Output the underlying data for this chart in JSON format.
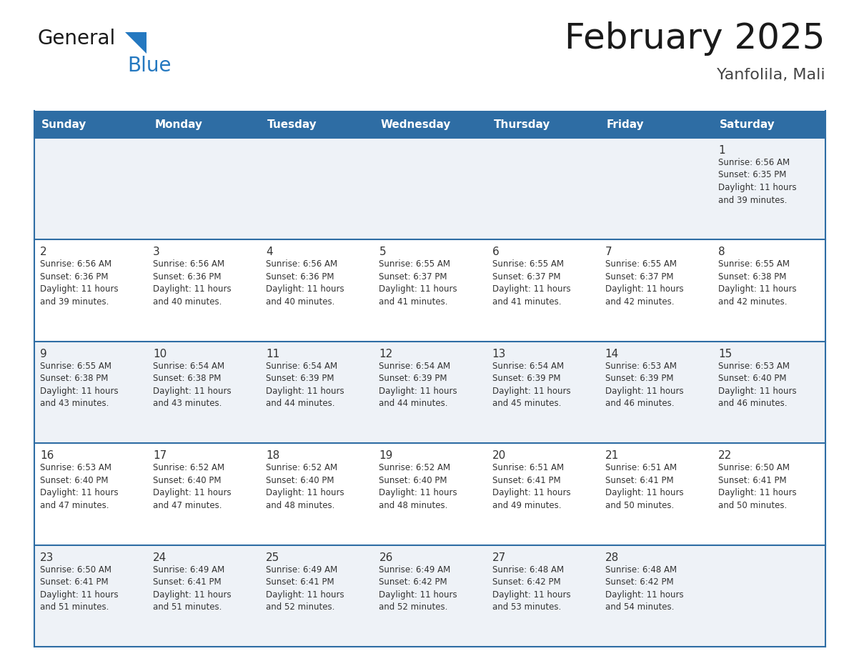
{
  "title": "February 2025",
  "subtitle": "Yanfolila, Mali",
  "days_of_week": [
    "Sunday",
    "Monday",
    "Tuesday",
    "Wednesday",
    "Thursday",
    "Friday",
    "Saturday"
  ],
  "header_bg": "#2E6DA4",
  "header_text": "#FFFFFF",
  "cell_bg_odd": "#EEF2F7",
  "cell_bg_even": "#FFFFFF",
  "border_color": "#2E6DA4",
  "day_number_color": "#333333",
  "text_color": "#333333",
  "title_color": "#1a1a1a",
  "subtitle_color": "#444444",
  "logo_general_color": "#1a1a1a",
  "logo_blue_color": "#2478C0",
  "weeks": [
    [
      null,
      null,
      null,
      null,
      null,
      null,
      {
        "day": 1,
        "sunrise": "6:56 AM",
        "sunset": "6:35 PM",
        "daylight": "11 hours and 39 minutes."
      }
    ],
    [
      {
        "day": 2,
        "sunrise": "6:56 AM",
        "sunset": "6:36 PM",
        "daylight": "11 hours and 39 minutes."
      },
      {
        "day": 3,
        "sunrise": "6:56 AM",
        "sunset": "6:36 PM",
        "daylight": "11 hours and 40 minutes."
      },
      {
        "day": 4,
        "sunrise": "6:56 AM",
        "sunset": "6:36 PM",
        "daylight": "11 hours and 40 minutes."
      },
      {
        "day": 5,
        "sunrise": "6:55 AM",
        "sunset": "6:37 PM",
        "daylight": "11 hours and 41 minutes."
      },
      {
        "day": 6,
        "sunrise": "6:55 AM",
        "sunset": "6:37 PM",
        "daylight": "11 hours and 41 minutes."
      },
      {
        "day": 7,
        "sunrise": "6:55 AM",
        "sunset": "6:37 PM",
        "daylight": "11 hours and 42 minutes."
      },
      {
        "day": 8,
        "sunrise": "6:55 AM",
        "sunset": "6:38 PM",
        "daylight": "11 hours and 42 minutes."
      }
    ],
    [
      {
        "day": 9,
        "sunrise": "6:55 AM",
        "sunset": "6:38 PM",
        "daylight": "11 hours and 43 minutes."
      },
      {
        "day": 10,
        "sunrise": "6:54 AM",
        "sunset": "6:38 PM",
        "daylight": "11 hours and 43 minutes."
      },
      {
        "day": 11,
        "sunrise": "6:54 AM",
        "sunset": "6:39 PM",
        "daylight": "11 hours and 44 minutes."
      },
      {
        "day": 12,
        "sunrise": "6:54 AM",
        "sunset": "6:39 PM",
        "daylight": "11 hours and 44 minutes."
      },
      {
        "day": 13,
        "sunrise": "6:54 AM",
        "sunset": "6:39 PM",
        "daylight": "11 hours and 45 minutes."
      },
      {
        "day": 14,
        "sunrise": "6:53 AM",
        "sunset": "6:39 PM",
        "daylight": "11 hours and 46 minutes."
      },
      {
        "day": 15,
        "sunrise": "6:53 AM",
        "sunset": "6:40 PM",
        "daylight": "11 hours and 46 minutes."
      }
    ],
    [
      {
        "day": 16,
        "sunrise": "6:53 AM",
        "sunset": "6:40 PM",
        "daylight": "11 hours and 47 minutes."
      },
      {
        "day": 17,
        "sunrise": "6:52 AM",
        "sunset": "6:40 PM",
        "daylight": "11 hours and 47 minutes."
      },
      {
        "day": 18,
        "sunrise": "6:52 AM",
        "sunset": "6:40 PM",
        "daylight": "11 hours and 48 minutes."
      },
      {
        "day": 19,
        "sunrise": "6:52 AM",
        "sunset": "6:40 PM",
        "daylight": "11 hours and 48 minutes."
      },
      {
        "day": 20,
        "sunrise": "6:51 AM",
        "sunset": "6:41 PM",
        "daylight": "11 hours and 49 minutes."
      },
      {
        "day": 21,
        "sunrise": "6:51 AM",
        "sunset": "6:41 PM",
        "daylight": "11 hours and 50 minutes."
      },
      {
        "day": 22,
        "sunrise": "6:50 AM",
        "sunset": "6:41 PM",
        "daylight": "11 hours and 50 minutes."
      }
    ],
    [
      {
        "day": 23,
        "sunrise": "6:50 AM",
        "sunset": "6:41 PM",
        "daylight": "11 hours and 51 minutes."
      },
      {
        "day": 24,
        "sunrise": "6:49 AM",
        "sunset": "6:41 PM",
        "daylight": "11 hours and 51 minutes."
      },
      {
        "day": 25,
        "sunrise": "6:49 AM",
        "sunset": "6:41 PM",
        "daylight": "11 hours and 52 minutes."
      },
      {
        "day": 26,
        "sunrise": "6:49 AM",
        "sunset": "6:42 PM",
        "daylight": "11 hours and 52 minutes."
      },
      {
        "day": 27,
        "sunrise": "6:48 AM",
        "sunset": "6:42 PM",
        "daylight": "11 hours and 53 minutes."
      },
      {
        "day": 28,
        "sunrise": "6:48 AM",
        "sunset": "6:42 PM",
        "daylight": "11 hours and 54 minutes."
      },
      null
    ]
  ]
}
